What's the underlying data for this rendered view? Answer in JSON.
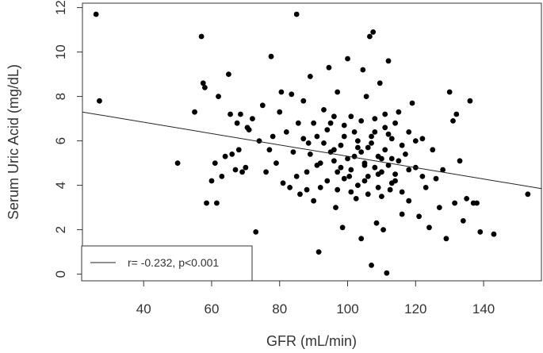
{
  "chart_data": {
    "type": "scatter",
    "xlabel": "GFR (mL/min)",
    "ylabel": "Serum Uric Acid (mg/dL)",
    "xlim": [
      22,
      157
    ],
    "ylim": [
      -0.3,
      12.2
    ],
    "xticks": [
      40,
      60,
      80,
      100,
      120,
      140
    ],
    "yticks": [
      0,
      2,
      4,
      6,
      8,
      10,
      12
    ],
    "grid": false,
    "legend_position": "bottom-left",
    "legend": {
      "label": "r= -0.232, p<0.001",
      "marker": "line"
    },
    "regression_line": {
      "x": [
        22,
        157
      ],
      "y": [
        7.3,
        3.85
      ]
    },
    "series": [
      {
        "points": [
          [
            26,
            11.7
          ],
          [
            27,
            7.8
          ],
          [
            50,
            5.0
          ],
          [
            55,
            7.3
          ],
          [
            57,
            10.7
          ],
          [
            57.5,
            8.6
          ],
          [
            58,
            8.4
          ],
          [
            58.5,
            3.2
          ],
          [
            60,
            4.2
          ],
          [
            61,
            5.0
          ],
          [
            61.5,
            3.2
          ],
          [
            62,
            8.0
          ],
          [
            63,
            4.4
          ],
          [
            64,
            5.3
          ],
          [
            65,
            9.0
          ],
          [
            65.5,
            7.2
          ],
          [
            66,
            5.4
          ],
          [
            67,
            4.7
          ],
          [
            67.5,
            6.8
          ],
          [
            68,
            5.6
          ],
          [
            68.5,
            7.2
          ],
          [
            69,
            4.6
          ],
          [
            70,
            4.8
          ],
          [
            70.5,
            6.6
          ],
          [
            71,
            6.5
          ],
          [
            72,
            7.0
          ],
          [
            73,
            1.9
          ],
          [
            74,
            6.0
          ],
          [
            75,
            7.6
          ],
          [
            76,
            4.6
          ],
          [
            77,
            5.6
          ],
          [
            77.5,
            9.8
          ],
          [
            78,
            6.2
          ],
          [
            79,
            5.0
          ],
          [
            80,
            7.3
          ],
          [
            80.5,
            8.2
          ],
          [
            81,
            4.1
          ],
          [
            82,
            6.4
          ],
          [
            83,
            3.9
          ],
          [
            83.5,
            8.1
          ],
          [
            84,
            5.5
          ],
          [
            85,
            11.7
          ],
          [
            85.5,
            6.8
          ],
          [
            86,
            3.6
          ],
          [
            87,
            7.8
          ],
          [
            88,
            4.6
          ],
          [
            88.5,
            5.9
          ],
          [
            89,
            8.9
          ],
          [
            90,
            3.3
          ],
          [
            91,
            6.2
          ],
          [
            91.5,
            1.0
          ],
          [
            92,
            5.0
          ],
          [
            93,
            7.4
          ],
          [
            94,
            4.2
          ],
          [
            94.5,
            9.3
          ],
          [
            95,
            6.8
          ],
          [
            96,
            5.6
          ],
          [
            96.5,
            3.0
          ],
          [
            97,
            8.2
          ],
          [
            98,
            4.8
          ],
          [
            98.5,
            2.1
          ],
          [
            99,
            6.2
          ],
          [
            100,
            9.7
          ],
          [
            100.5,
            4.4
          ],
          [
            101,
            7.1
          ],
          [
            102,
            5.3
          ],
          [
            102.5,
            3.4
          ],
          [
            103,
            6.0
          ],
          [
            104,
            1.6
          ],
          [
            104.5,
            9.2
          ],
          [
            105,
            4.9
          ],
          [
            105.5,
            8.0
          ],
          [
            106,
            5.7
          ],
          [
            106.5,
            10.7
          ],
          [
            107,
            0.4
          ],
          [
            107.5,
            10.9
          ],
          [
            108,
            6.4
          ],
          [
            108.5,
            2.3
          ],
          [
            109,
            4.5
          ],
          [
            109.5,
            8.6
          ],
          [
            110,
            5.2
          ],
          [
            110.5,
            2.0
          ],
          [
            111,
            7.2
          ],
          [
            111.5,
            0.05
          ],
          [
            112,
            9.6
          ],
          [
            112.5,
            3.8
          ],
          [
            113,
            6.1
          ],
          [
            114,
            4.2
          ],
          [
            115,
            7.3
          ],
          [
            116,
            2.7
          ],
          [
            117,
            5.4
          ],
          [
            118,
            3.3
          ],
          [
            119,
            7.7
          ],
          [
            120,
            4.8
          ],
          [
            121,
            2.6
          ],
          [
            122,
            6.1
          ],
          [
            123,
            3.9
          ],
          [
            124,
            2.1
          ],
          [
            125,
            5.6
          ],
          [
            126,
            4.3
          ],
          [
            127,
            3.0
          ],
          [
            128,
            4.7
          ],
          [
            129,
            1.6
          ],
          [
            130,
            8.2
          ],
          [
            131,
            6.9
          ],
          [
            131.5,
            3.2
          ],
          [
            132,
            7.2
          ],
          [
            133,
            5.1
          ],
          [
            134,
            2.4
          ],
          [
            135,
            3.4
          ],
          [
            136,
            7.8
          ],
          [
            137,
            3.2
          ],
          [
            138,
            3.2
          ],
          [
            139,
            1.9
          ],
          [
            143,
            1.8
          ],
          [
            153,
            3.6
          ],
          [
            96,
            5.1
          ],
          [
            97,
            4.6
          ],
          [
            98,
            5.8
          ],
          [
            99,
            4.3
          ],
          [
            100,
            5.2
          ],
          [
            101,
            4.7
          ],
          [
            102,
            6.4
          ],
          [
            103,
            4.0
          ],
          [
            104,
            5.5
          ],
          [
            105,
            5.0
          ],
          [
            106,
            4.4
          ],
          [
            107,
            5.9
          ],
          [
            108,
            4.8
          ],
          [
            109,
            5.3
          ],
          [
            110,
            4.6
          ],
          [
            111,
            5.6
          ],
          [
            112,
            4.9
          ],
          [
            113,
            5.2
          ],
          [
            114,
            4.5
          ],
          [
            115,
            5.1
          ],
          [
            103,
            5.7
          ],
          [
            105,
            4.2
          ],
          [
            107,
            6.2
          ],
          [
            109,
            3.9
          ],
          [
            111,
            6.6
          ],
          [
            113,
            4.1
          ],
          [
            104,
            6.9
          ],
          [
            106,
            3.6
          ],
          [
            108,
            7.0
          ],
          [
            110,
            3.5
          ],
          [
            112,
            6.3
          ],
          [
            101,
            3.7
          ],
          [
            99,
            6.7
          ],
          [
            97,
            3.8
          ],
          [
            95,
            5.5
          ],
          [
            93,
            5.9
          ],
          [
            91,
            4.9
          ],
          [
            89,
            5.4
          ],
          [
            87,
            6.1
          ],
          [
            85,
            4.4
          ],
          [
            116,
            5.8
          ],
          [
            118,
            4.7
          ],
          [
            120,
            6.0
          ],
          [
            122,
            4.4
          ],
          [
            114,
            6.8
          ],
          [
            116,
            3.7
          ],
          [
            118,
            6.4
          ],
          [
            92,
            3.9
          ],
          [
            94,
            6.5
          ],
          [
            96,
            7.1
          ],
          [
            90,
            6.8
          ],
          [
            88,
            3.8
          ]
        ]
      }
    ]
  }
}
